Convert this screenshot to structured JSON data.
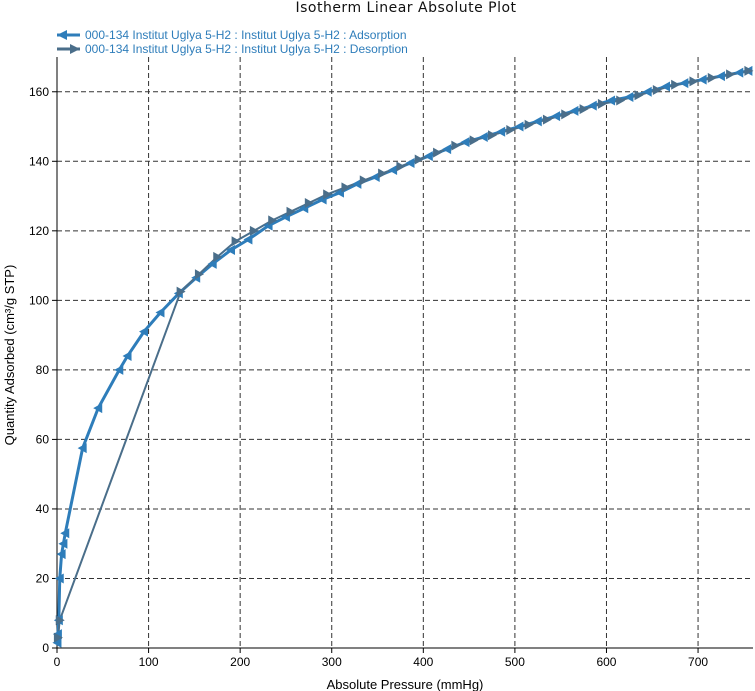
{
  "chart_data": {
    "type": "line",
    "title": "Isotherm Linear Absolute Plot",
    "xlabel": "Absolute Pressure (mmHg)",
    "ylabel": "Quantity Adsorbed (cm³/g STP)",
    "xlim": [
      0,
      760
    ],
    "ylim": [
      0,
      170
    ],
    "xticks": [
      0,
      100,
      200,
      300,
      400,
      500,
      600,
      700
    ],
    "yticks": [
      0,
      20,
      40,
      60,
      80,
      100,
      120,
      140,
      160
    ],
    "grid": true,
    "legend_position": "top-left",
    "series": [
      {
        "name": "000-134 Institut Uglya 5-H2 : Institut Uglya 5-H2 : Adsorption",
        "color": "#2E7DBA",
        "marker": "left-triangle",
        "x": [
          0.5,
          1,
          2,
          3,
          5,
          7,
          9,
          28,
          45,
          68,
          77,
          95,
          113,
          133,
          152,
          170,
          190,
          209,
          231,
          250,
          270,
          290,
          309,
          328,
          348,
          367,
          386,
          406,
          426,
          446,
          466,
          485,
          505,
          525,
          545,
          565,
          585,
          605,
          625,
          645,
          665,
          685,
          705,
          725,
          745,
          755
        ],
        "y": [
          1.5,
          4,
          8,
          20,
          27,
          30,
          33,
          57.5,
          69,
          80,
          84,
          91,
          96.5,
          102,
          106.5,
          110.5,
          114.5,
          117.5,
          121.5,
          124,
          126.5,
          129,
          131,
          133.5,
          135.5,
          137.5,
          139.5,
          141.5,
          143.5,
          145.5,
          147,
          148.5,
          150,
          151.5,
          153,
          154.5,
          156,
          157.5,
          158.5,
          160,
          161.5,
          162.5,
          163.5,
          164.5,
          165.5,
          166
        ]
      },
      {
        "name": "000-134 Institut Uglya 5-H2 : Institut Uglya 5-H2 : Desorption",
        "color": "#4A6E8A",
        "marker": "right-triangle",
        "x": [
          755,
          735,
          715,
          695,
          675,
          655,
          635,
          615,
          595,
          575,
          555,
          535,
          515,
          495,
          475,
          455,
          435,
          415,
          395,
          375,
          355,
          335,
          315,
          295,
          275,
          255,
          235,
          215,
          195,
          175,
          155,
          135,
          3,
          1
        ],
        "y": [
          166,
          165,
          164,
          163,
          162,
          160.5,
          159,
          157.5,
          156.5,
          155,
          153.5,
          152,
          150.5,
          149,
          147.5,
          146,
          144.5,
          142.5,
          140.5,
          138.5,
          136.5,
          134.5,
          132.5,
          130.5,
          128,
          125.5,
          123,
          120,
          117,
          112.5,
          107.5,
          102.5,
          8,
          3
        ]
      }
    ]
  }
}
